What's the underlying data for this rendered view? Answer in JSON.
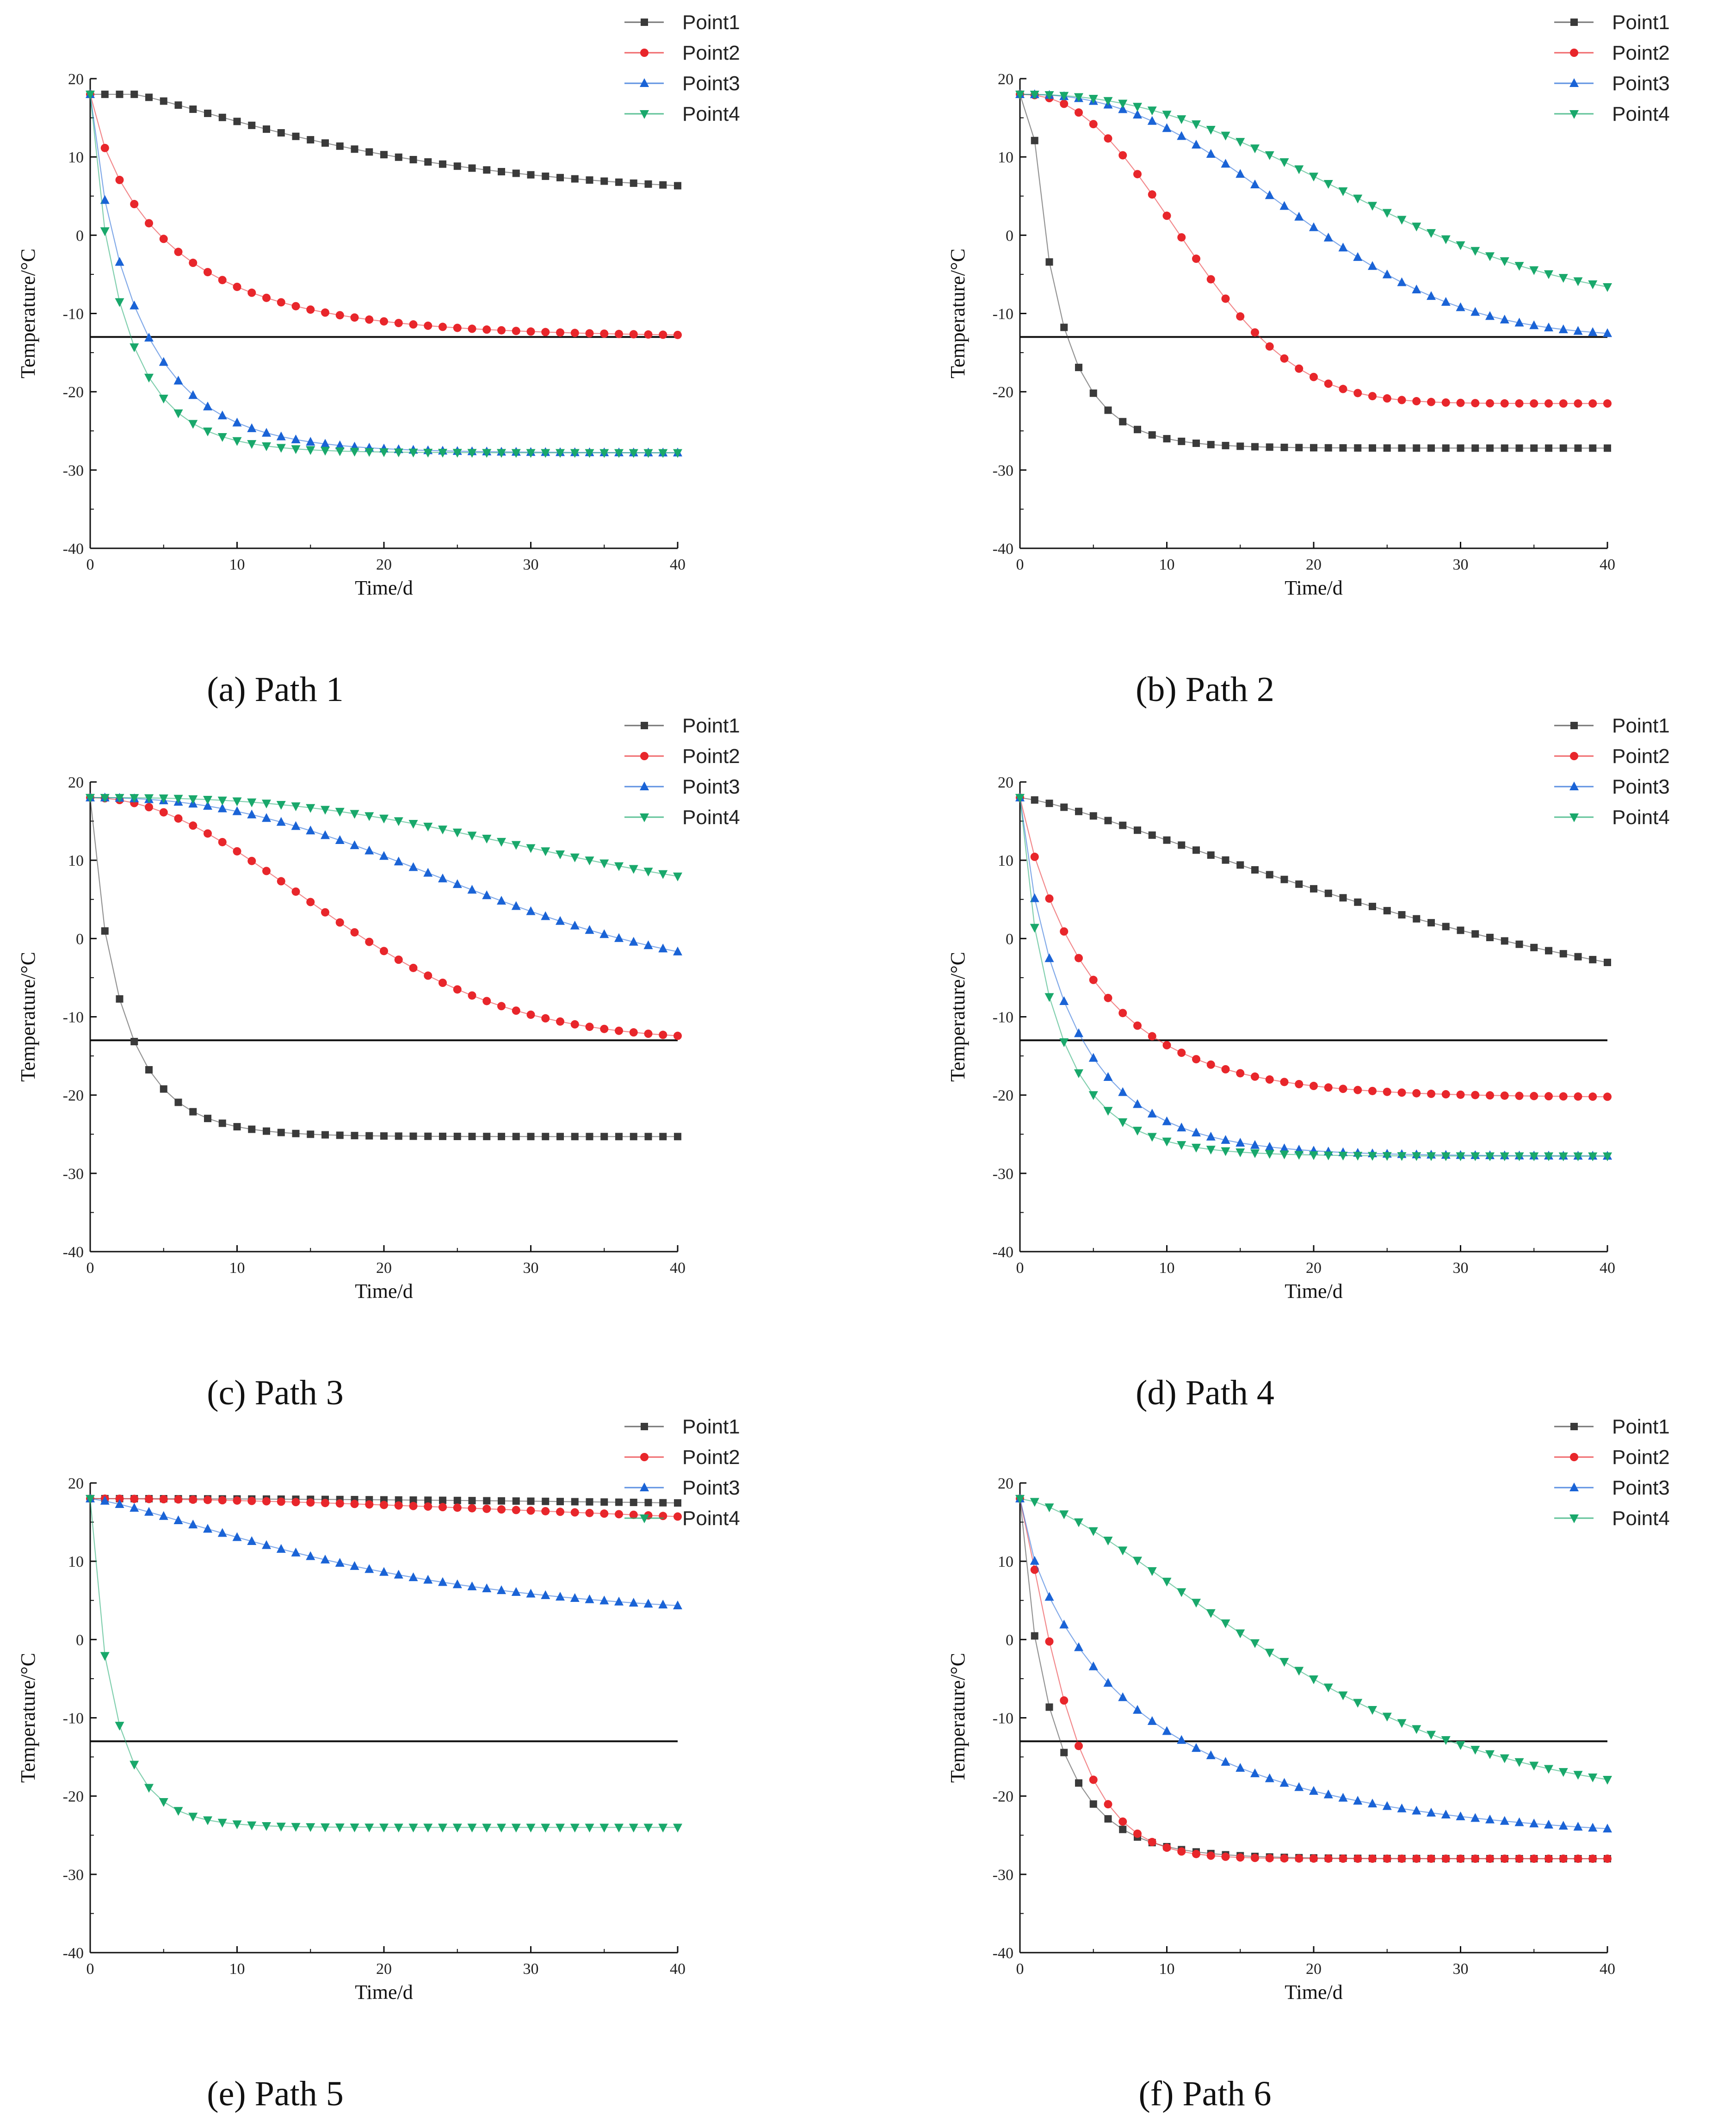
{
  "figure": {
    "background": "#ffffff"
  },
  "series_styles": [
    {
      "name": "Point1",
      "color": "#3a3a3a",
      "marker": "square"
    },
    {
      "name": "Point2",
      "color": "#e8262b",
      "marker": "circle"
    },
    {
      "name": "Point3",
      "color": "#1a63d6",
      "marker": "triangle-up"
    },
    {
      "name": "Point4",
      "color": "#19a86b",
      "marker": "triangle-down"
    }
  ],
  "chart_data": [
    {
      "type": "line",
      "caption": "(a) Path 1",
      "xlabel": "Time/d",
      "ylabel": "Temperature/°C",
      "xlim": [
        0,
        40
      ],
      "ylim": [
        -40,
        20
      ],
      "xticks": [
        0,
        10,
        20,
        30,
        40
      ],
      "yticks": [
        -40,
        -30,
        -20,
        -10,
        0,
        10,
        20
      ],
      "reference_line": {
        "y": -13
      },
      "legend": [
        "Point1",
        "Point2",
        "Point3",
        "Point4"
      ],
      "series": [
        {
          "name": "Point1",
          "model": {
            "T0": 18,
            "Tinf": 5,
            "k": 0.03,
            "delay": 3,
            "p": 1.2
          }
        },
        {
          "name": "Point2",
          "model": {
            "T0": 18,
            "Tinf": -13,
            "k": 0.25,
            "delay": 0,
            "p": 0.8
          }
        },
        {
          "name": "Point3",
          "model": {
            "T0": 18,
            "Tinf": -27.8,
            "k": 0.35,
            "delay": 0,
            "p": 0.85
          }
        },
        {
          "name": "Point4",
          "model": {
            "T0": 18,
            "Tinf": -27.8,
            "k": 0.48,
            "delay": 0,
            "p": 0.85
          }
        }
      ]
    },
    {
      "type": "line",
      "caption": "(b) Path 2",
      "xlabel": "Time/d",
      "ylabel": "Temperature/°C",
      "xlim": [
        0,
        40
      ],
      "ylim": [
        -40,
        20
      ],
      "xticks": [
        0,
        10,
        20,
        30,
        40
      ],
      "yticks": [
        -40,
        -30,
        -20,
        -10,
        0,
        10,
        20
      ],
      "reference_line": {
        "y": -13
      },
      "legend": [
        "Point1",
        "Point2",
        "Point3",
        "Point4"
      ],
      "series": [
        {
          "name": "Point1",
          "model": {
            "T0": 18,
            "Tinf": -27.2,
            "k": 0.55,
            "delay": 0.8,
            "p": 0.85
          }
        },
        {
          "name": "Point2",
          "model": {
            "T0": 18,
            "Tinf": -21.5,
            "k": 0.0025,
            "delay": 0,
            "p": 2.3
          }
        },
        {
          "name": "Point3",
          "model": {
            "T0": 18,
            "Tinf": -13,
            "k": 0.0006,
            "delay": 0,
            "p": 2.4
          }
        },
        {
          "name": "Point4",
          "model": {
            "T0": 18,
            "Tinf": -9,
            "k": 0.0005,
            "delay": 0,
            "p": 2.3
          }
        }
      ]
    },
    {
      "type": "line",
      "caption": "(c) Path 3",
      "xlabel": "Time/d",
      "ylabel": "Temperature/°C",
      "xlim": [
        0,
        40
      ],
      "ylim": [
        -40,
        20
      ],
      "xticks": [
        0,
        10,
        20,
        30,
        40
      ],
      "yticks": [
        -40,
        -30,
        -20,
        -10,
        0,
        10,
        20
      ],
      "reference_line": {
        "y": -13
      },
      "legend": [
        "Point1",
        "Point2",
        "Point3",
        "Point4"
      ],
      "series": [
        {
          "name": "Point1",
          "model": {
            "T0": 18,
            "Tinf": -25.3,
            "k": 0.5,
            "delay": 0,
            "p": 0.85
          }
        },
        {
          "name": "Point2",
          "model": {
            "T0": 18,
            "Tinf": -13,
            "k": 0.0025,
            "delay": 0,
            "p": 2.0
          }
        },
        {
          "name": "Point3",
          "model": {
            "T0": 18,
            "Tinf": -5,
            "k": 0.0004,
            "delay": 0,
            "p": 2.3
          }
        },
        {
          "name": "Point4",
          "model": {
            "T0": 18,
            "Tinf": 5,
            "k": 7e-05,
            "delay": 0,
            "p": 2.7
          }
        }
      ]
    },
    {
      "type": "line",
      "caption": "(d) Path 4",
      "xlabel": "Time/d",
      "ylabel": "Temperature/°C",
      "xlim": [
        0,
        40
      ],
      "ylim": [
        -40,
        20
      ],
      "xticks": [
        0,
        10,
        20,
        30,
        40
      ],
      "yticks": [
        -40,
        -30,
        -20,
        -10,
        0,
        10,
        20
      ],
      "reference_line": {
        "y": -13
      },
      "legend": [
        "Point1",
        "Point2",
        "Point3",
        "Point4"
      ],
      "series": [
        {
          "name": "Point1",
          "model": {
            "T0": 18,
            "Tinf": -12,
            "k": 0.01,
            "delay": 0,
            "p": 1.3
          }
        },
        {
          "name": "Point2",
          "model": {
            "T0": 18,
            "Tinf": -20.3,
            "k": 0.22,
            "delay": 0,
            "p": 0.9
          }
        },
        {
          "name": "Point3",
          "model": {
            "T0": 18,
            "Tinf": -27.8,
            "k": 0.33,
            "delay": 0,
            "p": 0.85
          }
        },
        {
          "name": "Point4",
          "model": {
            "T0": 18,
            "Tinf": -27.8,
            "k": 0.45,
            "delay": 0,
            "p": 0.85
          }
        }
      ]
    },
    {
      "type": "line",
      "caption": "(e) Path 5",
      "xlabel": "Time/d",
      "ylabel": "Temperature/°C",
      "xlim": [
        0,
        40
      ],
      "ylim": [
        -40,
        20
      ],
      "xticks": [
        0,
        10,
        20,
        30,
        40
      ],
      "yticks": [
        -40,
        -30,
        -20,
        -10,
        0,
        10,
        20
      ],
      "reference_line": {
        "y": -13
      },
      "legend": [
        "Point1",
        "Point2",
        "Point3",
        "Point4"
      ],
      "series": [
        {
          "name": "Point1",
          "model": {
            "T0": 18,
            "Tinf": 16,
            "k": 0.0002,
            "delay": 0,
            "p": 2.0
          }
        },
        {
          "name": "Point2",
          "model": {
            "T0": 18,
            "Tinf": 13,
            "k": 0.0008,
            "delay": 0,
            "p": 1.8
          }
        },
        {
          "name": "Point3",
          "model": {
            "T0": 18,
            "Tinf": 3,
            "k": 0.02,
            "delay": 0,
            "p": 1.3
          }
        },
        {
          "name": "Point4",
          "model": {
            "T0": 18,
            "Tinf": -24,
            "k": 0.65,
            "delay": 0,
            "p": 0.85
          }
        }
      ]
    },
    {
      "type": "line",
      "caption": "(f) Path 6",
      "xlabel": "Time/d",
      "ylabel": "Temperature/°C",
      "xlim": [
        0,
        40
      ],
      "ylim": [
        -40,
        20
      ],
      "xticks": [
        0,
        10,
        20,
        30,
        40
      ],
      "yticks": [
        -40,
        -30,
        -20,
        -10,
        0,
        10,
        20
      ],
      "reference_line": {
        "y": -13
      },
      "legend": [
        "Point1",
        "Point2",
        "Point3",
        "Point4"
      ],
      "series": [
        {
          "name": "Point1",
          "model": {
            "T0": 18,
            "Tinf": -28,
            "k": 0.48,
            "delay": 0,
            "p": 0.85
          }
        },
        {
          "name": "Point2",
          "model": {
            "T0": 18,
            "Tinf": -28,
            "k": 0.22,
            "delay": 0,
            "p": 1.2
          }
        },
        {
          "name": "Point3",
          "model": {
            "T0": 18,
            "Tinf": -26,
            "k": 0.2,
            "delay": 0,
            "p": 0.75
          }
        },
        {
          "name": "Point4",
          "model": {
            "T0": 18,
            "Tinf": -21,
            "k": 0.01,
            "delay": 0,
            "p": 1.5
          }
        }
      ]
    }
  ]
}
